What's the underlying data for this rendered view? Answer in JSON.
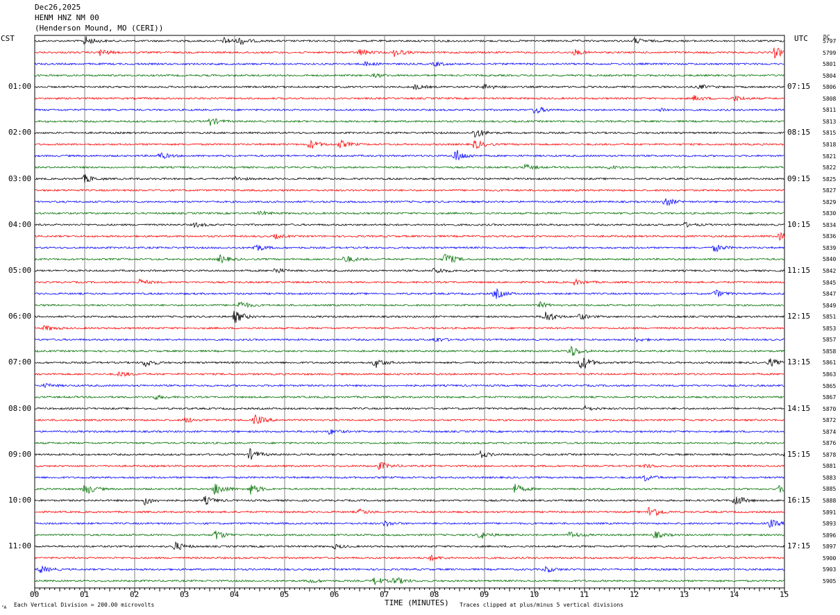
{
  "header": {
    "date": "Dec26,2025",
    "channel": "HENM HNZ NM 00",
    "station": "(Henderson Mound, MO (CERI))"
  },
  "left_timezone": "CST",
  "right_timezone": "UTC",
  "dc_label": "DC",
  "footer": {
    "scale_text": "Each Vertical Division =  200.00 microvolts",
    "clip_text": "Traces clipped at plus/minus 5 vertical divisions",
    "corner_mark": "\"A"
  },
  "colors": {
    "trace_cycle": [
      "#000000",
      "#ff0000",
      "#0000ff",
      "#007000"
    ],
    "grid": "#808080"
  },
  "chart_data": {
    "type": "line",
    "xlabel": "TIME (MINUTES)",
    "x_ticks": [
      "00",
      "01",
      "02",
      "03",
      "04",
      "05",
      "06",
      "07",
      "08",
      "09",
      "10",
      "11",
      "12",
      "13",
      "14",
      "15"
    ],
    "xlim": [
      0,
      15
    ],
    "left_hour_labels": [
      "01:00",
      "02:00",
      "03:00",
      "04:00",
      "05:00",
      "06:00",
      "07:00",
      "08:00",
      "09:00",
      "10:00",
      "11:00"
    ],
    "right_hour_labels": [
      "07:15",
      "08:15",
      "09:15",
      "10:15",
      "11:15",
      "12:15",
      "13:15",
      "14:15",
      "15:15",
      "16:15",
      "17:15"
    ],
    "trace_offsets": [
      "5797",
      "5799",
      "5801",
      "5804",
      "5806",
      "5808",
      "5811",
      "5813",
      "5815",
      "5818",
      "5821",
      "5822",
      "5825",
      "5827",
      "5829",
      "5830",
      "5834",
      "5836",
      "5839",
      "5840",
      "5842",
      "5845",
      "5847",
      "5849",
      "5851",
      "5853",
      "5857",
      "5858",
      "5861",
      "5863",
      "5865",
      "5867",
      "5870",
      "5872",
      "5874",
      "5876",
      "5878",
      "5881",
      "5883",
      "5885",
      "5888",
      "5891",
      "5893",
      "5896",
      "5897",
      "5900",
      "5903",
      "5905"
    ],
    "events": [
      [
        1.0,
        0,
        1.4
      ],
      [
        3.8,
        0,
        1.0
      ],
      [
        4.1,
        0,
        1.0
      ],
      [
        12.0,
        0,
        0.8
      ],
      [
        1.3,
        1,
        1.0
      ],
      [
        6.5,
        1,
        1.0
      ],
      [
        7.2,
        1,
        1.2
      ],
      [
        10.8,
        1,
        0.8
      ],
      [
        14.8,
        1,
        1.6
      ],
      [
        6.6,
        2,
        0.6
      ],
      [
        8.0,
        2,
        0.6
      ],
      [
        6.8,
        3,
        0.6
      ],
      [
        7.6,
        4,
        0.7
      ],
      [
        9.0,
        4,
        0.8
      ],
      [
        13.3,
        4,
        0.6
      ],
      [
        13.2,
        5,
        0.8
      ],
      [
        14.0,
        5,
        0.8
      ],
      [
        10.0,
        6,
        1.2
      ],
      [
        12.5,
        6,
        0.6
      ],
      [
        3.5,
        7,
        1.2
      ],
      [
        8.8,
        8,
        1.6
      ],
      [
        5.5,
        9,
        1.4
      ],
      [
        6.1,
        9,
        1.2
      ],
      [
        8.8,
        9,
        1.4
      ],
      [
        2.5,
        10,
        1.0
      ],
      [
        8.4,
        10,
        2.2
      ],
      [
        9.8,
        11,
        0.8
      ],
      [
        11.5,
        11,
        0.6
      ],
      [
        1.0,
        12,
        1.2
      ],
      [
        4.0,
        12,
        0.6
      ],
      [
        12.6,
        14,
        1.4
      ],
      [
        4.5,
        15,
        0.6
      ],
      [
        3.2,
        16,
        0.6
      ],
      [
        13.0,
        16,
        0.6
      ],
      [
        4.8,
        17,
        0.6
      ],
      [
        14.9,
        17,
        1.0
      ],
      [
        4.4,
        18,
        1.2
      ],
      [
        13.6,
        18,
        1.2
      ],
      [
        3.7,
        19,
        1.2
      ],
      [
        6.2,
        19,
        1.2
      ],
      [
        8.2,
        19,
        2.2
      ],
      [
        4.8,
        20,
        0.8
      ],
      [
        8.0,
        20,
        1.0
      ],
      [
        2.1,
        21,
        0.8
      ],
      [
        10.8,
        21,
        0.8
      ],
      [
        9.2,
        22,
        1.6
      ],
      [
        13.6,
        22,
        1.2
      ],
      [
        4.1,
        23,
        1.2
      ],
      [
        10.1,
        23,
        0.8
      ],
      [
        4.0,
        24,
        2.0
      ],
      [
        10.2,
        24,
        2.0
      ],
      [
        10.9,
        24,
        0.8
      ],
      [
        0.2,
        25,
        0.8
      ],
      [
        8.0,
        26,
        0.8
      ],
      [
        12.0,
        26,
        0.6
      ],
      [
        10.7,
        27,
        2.0
      ],
      [
        2.2,
        28,
        1.2
      ],
      [
        6.8,
        28,
        1.6
      ],
      [
        10.9,
        28,
        3.0
      ],
      [
        14.7,
        28,
        1.2
      ],
      [
        1.7,
        29,
        0.8
      ],
      [
        0.2,
        30,
        0.6
      ],
      [
        2.4,
        31,
        0.6
      ],
      [
        11.0,
        32,
        0.6
      ],
      [
        4.4,
        33,
        1.6
      ],
      [
        3.0,
        33,
        0.8
      ],
      [
        5.9,
        34,
        0.8
      ],
      [
        4.3,
        36,
        1.6
      ],
      [
        8.9,
        36,
        1.0
      ],
      [
        15.0,
        36,
        1.0
      ],
      [
        6.9,
        37,
        1.2
      ],
      [
        12.2,
        37,
        0.6
      ],
      [
        12.2,
        38,
        1.0
      ],
      [
        1.0,
        39,
        1.8
      ],
      [
        3.6,
        39,
        2.2
      ],
      [
        4.3,
        39,
        1.8
      ],
      [
        9.6,
        39,
        1.4
      ],
      [
        14.9,
        39,
        1.0
      ],
      [
        2.2,
        40,
        1.2
      ],
      [
        3.4,
        40,
        1.2
      ],
      [
        14.0,
        40,
        1.8
      ],
      [
        12.3,
        41,
        2.2
      ],
      [
        6.5,
        41,
        0.8
      ],
      [
        14.7,
        42,
        1.2
      ],
      [
        7.0,
        42,
        0.8
      ],
      [
        3.6,
        43,
        1.6
      ],
      [
        8.9,
        43,
        1.2
      ],
      [
        10.7,
        43,
        1.0
      ],
      [
        12.4,
        43,
        1.0
      ],
      [
        2.8,
        44,
        1.4
      ],
      [
        6.0,
        44,
        0.6
      ],
      [
        7.9,
        45,
        0.8
      ],
      [
        0.1,
        46,
        1.2
      ],
      [
        10.2,
        46,
        1.0
      ],
      [
        6.8,
        47,
        1.2
      ],
      [
        7.2,
        47,
        1.2
      ],
      [
        5.5,
        47,
        0.6
      ]
    ]
  }
}
